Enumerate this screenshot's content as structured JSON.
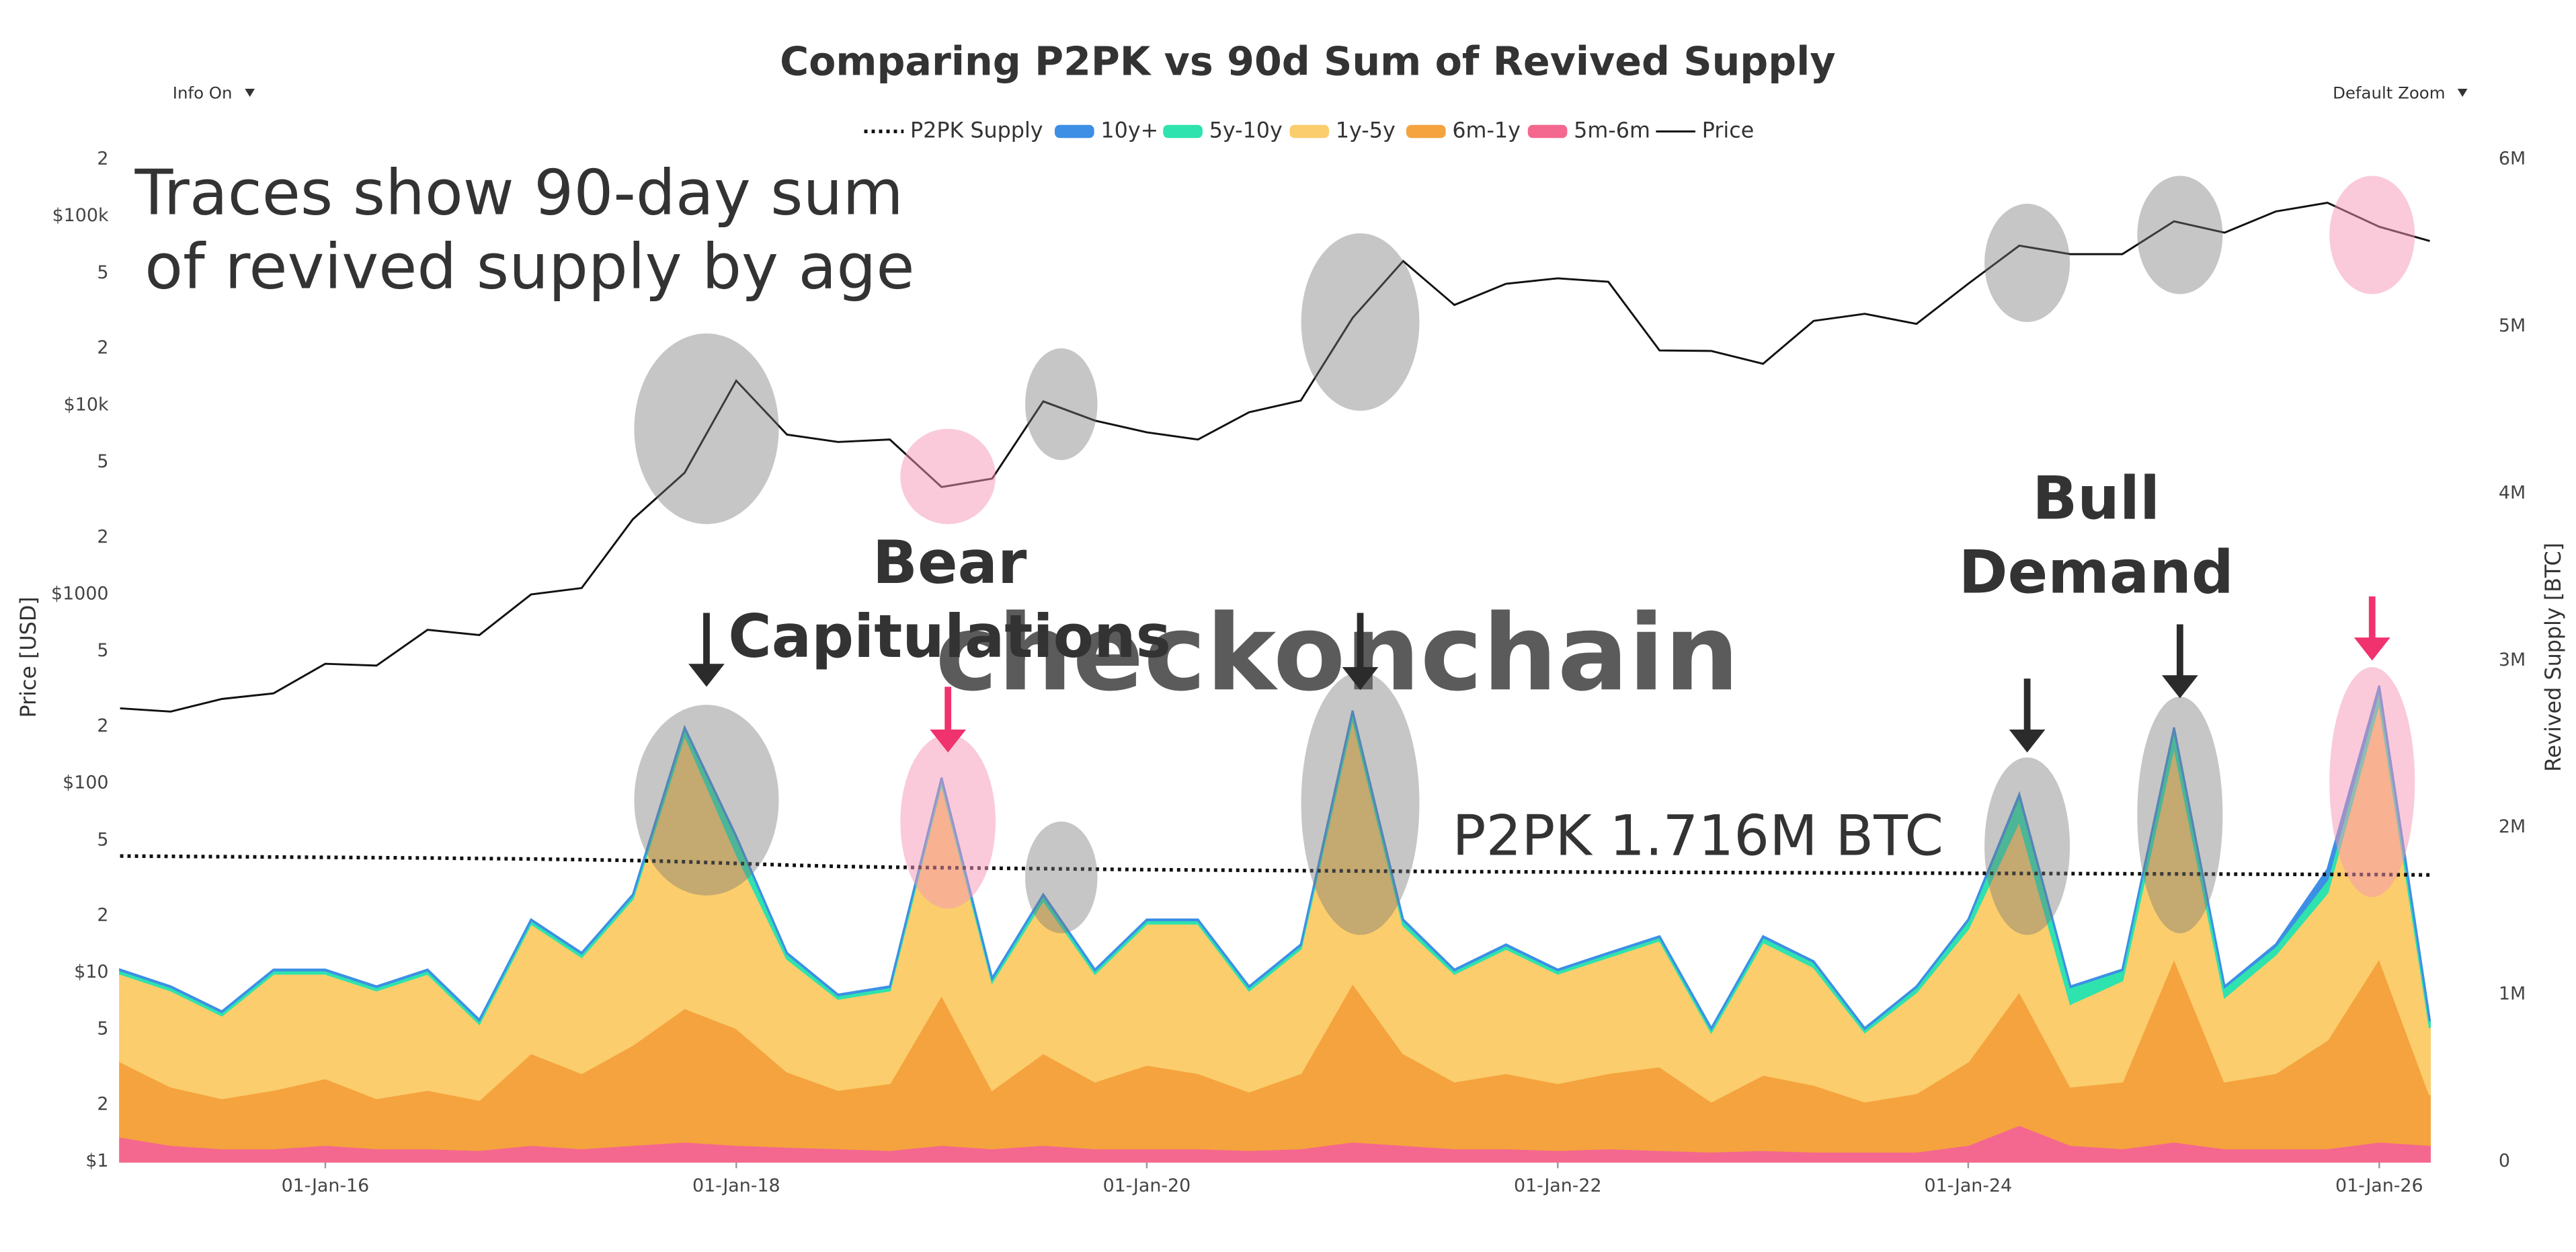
{
  "chart_data": {
    "type": "area",
    "title": "Comparing P2PK vs 90d Sum of Revived Supply",
    "controls": [
      "Info On",
      "Default Zoom"
    ],
    "y_label": "Price [USD]",
    "y2_label": "Revived Supply [BTC]",
    "watermark": "checkonchain",
    "annotations": [
      "Traces show 90-day sum",
      "of revived supply by age",
      "Bear",
      "Capitulations",
      "Bull",
      "Demand",
      "P2PK 1.716M BTC"
    ],
    "stacked": true,
    "grid": false,
    "legend": "top",
    "y_log": true,
    "x": [
      "2015-01-01",
      "2015-04-01",
      "2015-07-01",
      "2015-10-01",
      "2016-01-01",
      "2016-04-01",
      "2016-07-01",
      "2016-10-01",
      "2017-01-01",
      "2017-04-01",
      "2017-07-01",
      "2017-10-01",
      "2018-01-01",
      "2018-04-01",
      "2018-07-01",
      "2018-10-01",
      "2019-01-01",
      "2019-04-01",
      "2019-07-01",
      "2019-10-01",
      "2020-01-01",
      "2020-04-01",
      "2020-07-01",
      "2020-10-01",
      "2021-01-01",
      "2021-04-01",
      "2021-07-01",
      "2021-10-01",
      "2022-01-01",
      "2022-04-01",
      "2022-07-01",
      "2022-10-01",
      "2023-01-01",
      "2023-04-01",
      "2023-07-01",
      "2023-10-01",
      "2024-01-01",
      "2024-04-01",
      "2024-07-01",
      "2024-10-01",
      "2025-01-01",
      "2025-04-01",
      "2025-07-01",
      "2025-10-01",
      "2026-01-01",
      "2026-04-01"
    ],
    "xlim": [
      "2015-01-01",
      "2026-06-01"
    ],
    "xticks": [
      {
        "value": "2016-01-01",
        "label": "01-Jan-16"
      },
      {
        "value": "2018-01-01",
        "label": "01-Jan-18"
      },
      {
        "value": "2020-01-01",
        "label": "01-Jan-20"
      },
      {
        "value": "2022-01-01",
        "label": "01-Jan-22"
      },
      {
        "value": "2024-01-01",
        "label": "01-Jan-24"
      },
      {
        "value": "2026-01-01",
        "label": "01-Jan-26"
      }
    ],
    "ylim": [
      1,
      200000
    ],
    "yticks": [
      {
        "value": 1,
        "label": "$1"
      },
      2,
      5,
      {
        "value": 10,
        "label": "$10"
      },
      {
        "value": 20,
        "label": "2"
      },
      {
        "value": 50,
        "label": "5"
      },
      {
        "value": 100,
        "label": "$100"
      },
      {
        "value": 200,
        "label": "2"
      },
      {
        "value": 500,
        "label": "5"
      },
      {
        "value": 1000,
        "label": "$1000"
      },
      {
        "value": 2000,
        "label": "2"
      },
      {
        "value": 5000,
        "label": "5"
      },
      {
        "value": 10000,
        "label": "$10k"
      },
      {
        "value": 20000,
        "label": "2"
      },
      {
        "value": 50000,
        "label": "5"
      },
      {
        "value": 100000,
        "label": "$100k"
      },
      {
        "value": 200000,
        "label": "2"
      }
    ],
    "y2lim": [
      0,
      6000000
    ],
    "y2ticks": [
      0,
      {
        "value": 1000000,
        "label": "1M"
      },
      {
        "value": 2000000,
        "label": "2M"
      },
      {
        "value": 3000000,
        "label": "3M"
      },
      {
        "value": 4000000,
        "label": "4M"
      },
      {
        "value": 5000000,
        "label": "5M"
      },
      {
        "value": 6000000,
        "label": "6M"
      }
    ],
    "series": [
      {
        "name": "P2PK Supply",
        "type": "line",
        "axis": "y2",
        "color": "#111111",
        "dash": "dotted",
        "values": [
          1830000,
          1828000,
          1826000,
          1824000,
          1822000,
          1820000,
          1818000,
          1815000,
          1812000,
          1808000,
          1803000,
          1795000,
          1785000,
          1775000,
          1768000,
          1763000,
          1760000,
          1757000,
          1754000,
          1751000,
          1748000,
          1746000,
          1744000,
          1742000,
          1740000,
          1738000,
          1736000,
          1735000,
          1734000,
          1733000,
          1732000,
          1731000,
          1730000,
          1729000,
          1728000,
          1727000,
          1726000,
          1725000,
          1724000,
          1723000,
          1722000,
          1721000,
          1720000,
          1719000,
          1718000,
          1716000
        ]
      },
      {
        "name": "10y+",
        "type": "area",
        "axis": "y2",
        "color": "#3d8fe6",
        "values": [
          5000,
          5000,
          5000,
          5000,
          5000,
          5000,
          5000,
          5000,
          5000,
          5000,
          5000,
          5000,
          5000,
          5000,
          5000,
          5000,
          5000,
          5000,
          5000,
          5000,
          5000,
          5000,
          5000,
          5000,
          5000,
          5000,
          5000,
          5000,
          5000,
          5000,
          5000,
          5000,
          5000,
          5000,
          5000,
          5000,
          5000,
          10000,
          5000,
          5000,
          10000,
          5000,
          10000,
          60000,
          20000,
          10000
        ]
      },
      {
        "name": "5y-10y",
        "type": "area",
        "axis": "y2",
        "color": "#2ee3ad",
        "values": [
          20000,
          20000,
          20000,
          20000,
          20000,
          20000,
          20000,
          20000,
          20000,
          20000,
          20000,
          40000,
          100000,
          30000,
          20000,
          20000,
          30000,
          20000,
          30000,
          20000,
          20000,
          20000,
          20000,
          20000,
          40000,
          30000,
          20000,
          20000,
          20000,
          20000,
          20000,
          20000,
          30000,
          30000,
          20000,
          30000,
          50000,
          150000,
          100000,
          60000,
          100000,
          60000,
          50000,
          80000,
          80000,
          40000
        ]
      },
      {
        "name": "1y-5y",
        "type": "area",
        "axis": "y2",
        "color": "#fbcd6c",
        "values": [
          525000,
          575000,
          495000,
          695000,
          625000,
          645000,
          695000,
          455000,
          775000,
          695000,
          875000,
          1635000,
          1045000,
          675000,
          545000,
          555000,
          1265000,
          645000,
          915000,
          645000,
          845000,
          895000,
          605000,
          745000,
          1585000,
          765000,
          645000,
          745000,
          655000,
          695000,
          755000,
          415000,
          795000,
          705000,
          415000,
          605000,
          795000,
          1020000,
          495000,
          605000,
          1270000,
          505000,
          710000,
          880000,
          1530000,
          400000
        ]
      },
      {
        "name": "6m-1y",
        "type": "area",
        "axis": "y2",
        "color": "#f5a33e",
        "values": [
          450000,
          350000,
          300000,
          350000,
          400000,
          300000,
          350000,
          300000,
          550000,
          450000,
          600000,
          800000,
          700000,
          450000,
          350000,
          400000,
          900000,
          350000,
          550000,
          400000,
          500000,
          450000,
          350000,
          450000,
          950000,
          550000,
          400000,
          450000,
          400000,
          450000,
          500000,
          300000,
          450000,
          400000,
          300000,
          350000,
          500000,
          800000,
          350000,
          400000,
          1100000,
          400000,
          450000,
          650000,
          1100000,
          300000
        ]
      },
      {
        "name": "5m-6m",
        "type": "area",
        "axis": "y2",
        "color": "#f4688f",
        "values": [
          150000,
          100000,
          80000,
          80000,
          100000,
          80000,
          80000,
          70000,
          100000,
          80000,
          100000,
          120000,
          100000,
          90000,
          80000,
          70000,
          100000,
          80000,
          100000,
          80000,
          80000,
          80000,
          70000,
          80000,
          120000,
          100000,
          80000,
          80000,
          70000,
          80000,
          70000,
          60000,
          70000,
          60000,
          60000,
          60000,
          100000,
          220000,
          100000,
          80000,
          120000,
          80000,
          80000,
          80000,
          120000,
          100000
        ]
      },
      {
        "name": "Price",
        "type": "line",
        "axis": "y",
        "color": "#111111",
        "dash": "solid",
        "values": [
          250,
          240,
          280,
          300,
          430,
          420,
          650,
          610,
          1000,
          1080,
          2500,
          4400,
          13500,
          7000,
          6400,
          6600,
          3700,
          4100,
          10500,
          8300,
          7200,
          6600,
          9200,
          10600,
          29000,
          58000,
          34000,
          44000,
          47000,
          45000,
          19500,
          19400,
          16600,
          28000,
          30500,
          27000,
          44000,
          70000,
          63000,
          63000,
          94000,
          82000,
          106000,
          118000,
          88000,
          74000
        ]
      }
    ]
  }
}
